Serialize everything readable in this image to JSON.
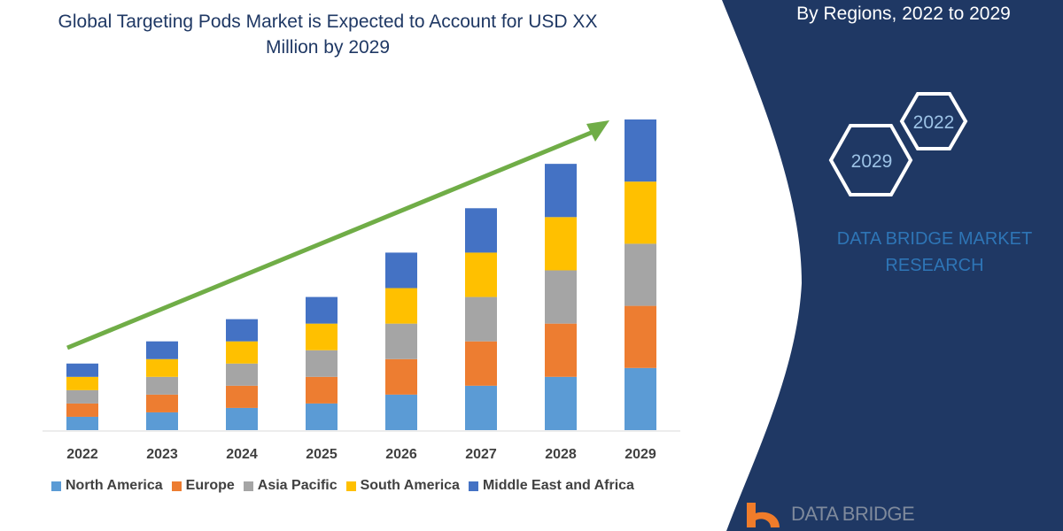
{
  "title": "Global Targeting Pods Market is Expected to Account for USD XX Million by 2029",
  "right_title": "By Regions, 2022 to 2029",
  "hexagons": [
    "2022",
    "2029"
  ],
  "brand": "DATA BRIDGE MARKET RESEARCH",
  "logo_text": "DATA BRIDGE",
  "colors": {
    "panel": "#1f3864",
    "arrow": "#70ad47"
  },
  "chart_data": {
    "type": "bar",
    "stacked": true,
    "categories": [
      "2022",
      "2023",
      "2024",
      "2025",
      "2026",
      "2027",
      "2028",
      "2029"
    ],
    "series": [
      {
        "name": "North America",
        "color": "#5b9bd5",
        "values": [
          15,
          20,
          25,
          30,
          40,
          50,
          60,
          70
        ]
      },
      {
        "name": "Europe",
        "color": "#ed7d31",
        "values": [
          15,
          20,
          25,
          30,
          40,
          50,
          60,
          70
        ]
      },
      {
        "name": "Asia Pacific",
        "color": "#a5a5a5",
        "values": [
          15,
          20,
          25,
          30,
          40,
          50,
          60,
          70
        ]
      },
      {
        "name": "South America",
        "color": "#ffc000",
        "values": [
          15,
          20,
          25,
          30,
          40,
          50,
          60,
          70
        ]
      },
      {
        "name": "Middle East and Africa",
        "color": "#4472c4",
        "values": [
          15,
          20,
          25,
          30,
          40,
          50,
          60,
          70
        ]
      }
    ],
    "ylim": [
      0,
      350
    ],
    "grid": false,
    "legend": "bottom",
    "trend_arrow": true
  }
}
